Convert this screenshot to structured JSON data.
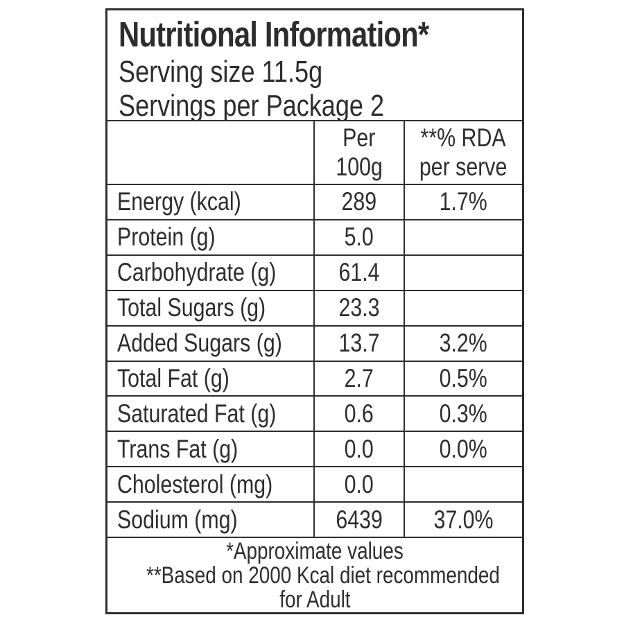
{
  "label": {
    "title": "Nutritional Information*",
    "serving_size": "Serving size 11.5g",
    "servings_per_package": "Servings per Package 2",
    "columns": {
      "nutrient": "",
      "per_100g_line1": "Per",
      "per_100g_line2": "100g",
      "rda_line1": "**% RDA",
      "rda_line2": "per serve"
    },
    "rows": [
      {
        "nutrient": "Energy (kcal)",
        "per_100g": "289",
        "rda_per_serve": "1.7%"
      },
      {
        "nutrient": "Protein (g)",
        "per_100g": "5.0",
        "rda_per_serve": ""
      },
      {
        "nutrient": "Carbohydrate (g)",
        "per_100g": "61.4",
        "rda_per_serve": ""
      },
      {
        "nutrient": "Total Sugars (g)",
        "per_100g": "23.3",
        "rda_per_serve": ""
      },
      {
        "nutrient": "Added Sugars (g)",
        "per_100g": "13.7",
        "rda_per_serve": "3.2%"
      },
      {
        "nutrient": "Total Fat (g)",
        "per_100g": "2.7",
        "rda_per_serve": "0.5%"
      },
      {
        "nutrient": "Saturated Fat (g)",
        "per_100g": "0.6",
        "rda_per_serve": "0.3%"
      },
      {
        "nutrient": "Trans Fat (g)",
        "per_100g": "0.0",
        "rda_per_serve": "0.0%"
      },
      {
        "nutrient": "Cholesterol (mg)",
        "per_100g": "0.0",
        "rda_per_serve": ""
      },
      {
        "nutrient": "Sodium (mg)",
        "per_100g": "6439",
        "rda_per_serve": "37.0%"
      }
    ],
    "footnotes": {
      "approximate": "*Approximate values",
      "rda_basis_line1": "**Based on 2000 Kcal diet recommended",
      "rda_basis_line2": "for Adult"
    },
    "colors": {
      "text": "#2d2d2d",
      "border": "#2d2d2d",
      "background": "#ffffff"
    }
  }
}
